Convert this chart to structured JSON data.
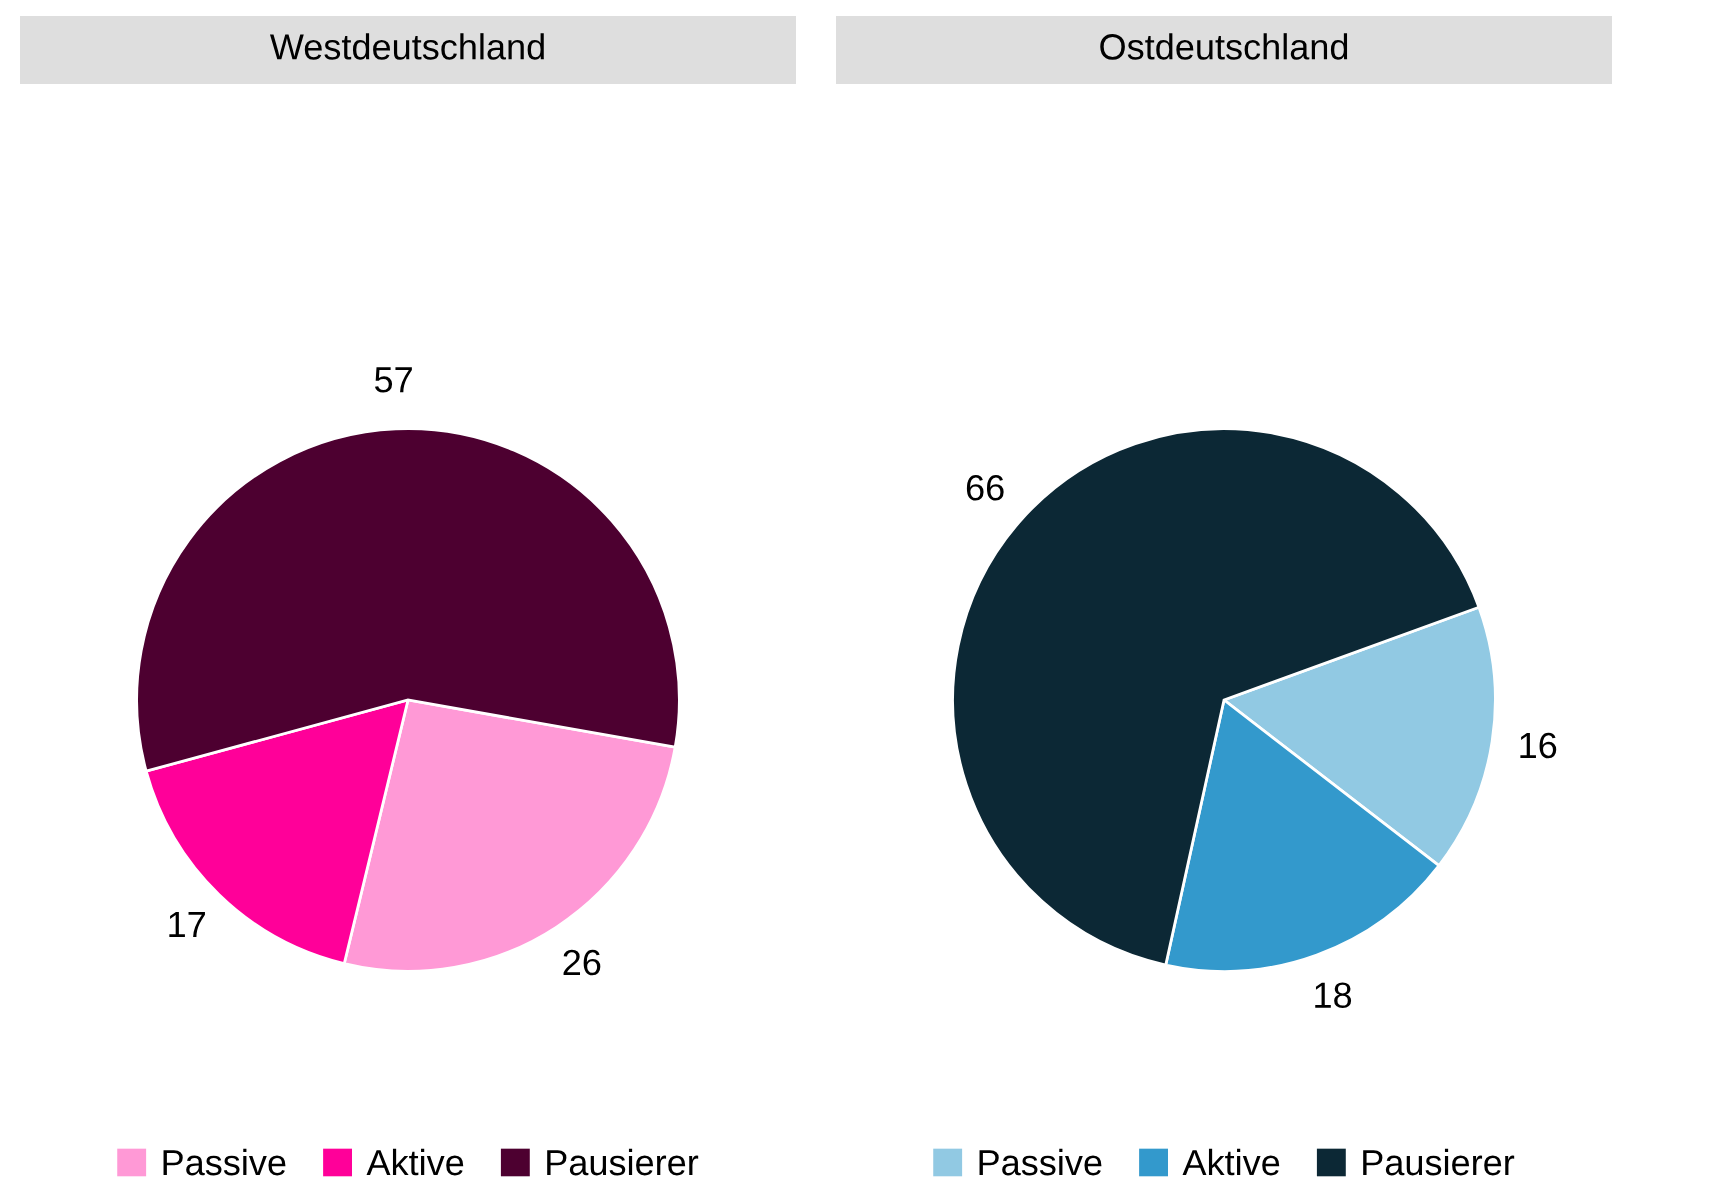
{
  "chart_data": [
    {
      "type": "pie",
      "title": "Westdeutschland",
      "categories": [
        "Passive",
        "Aktive",
        "Pausierer"
      ],
      "values": [
        26,
        17,
        57
      ],
      "colors": [
        "#ff99d6",
        "#ff0099",
        "#4d0030"
      ],
      "data_labels": true,
      "legend": "bottom"
    },
    {
      "type": "pie",
      "title": "Ostdeutschland",
      "categories": [
        "Passive",
        "Aktive",
        "Pausierer"
      ],
      "values": [
        16,
        18,
        66
      ],
      "colors": [
        "#91c9e3",
        "#3399cc",
        "#0c2835"
      ],
      "data_labels": true,
      "legend": "bottom"
    }
  ]
}
